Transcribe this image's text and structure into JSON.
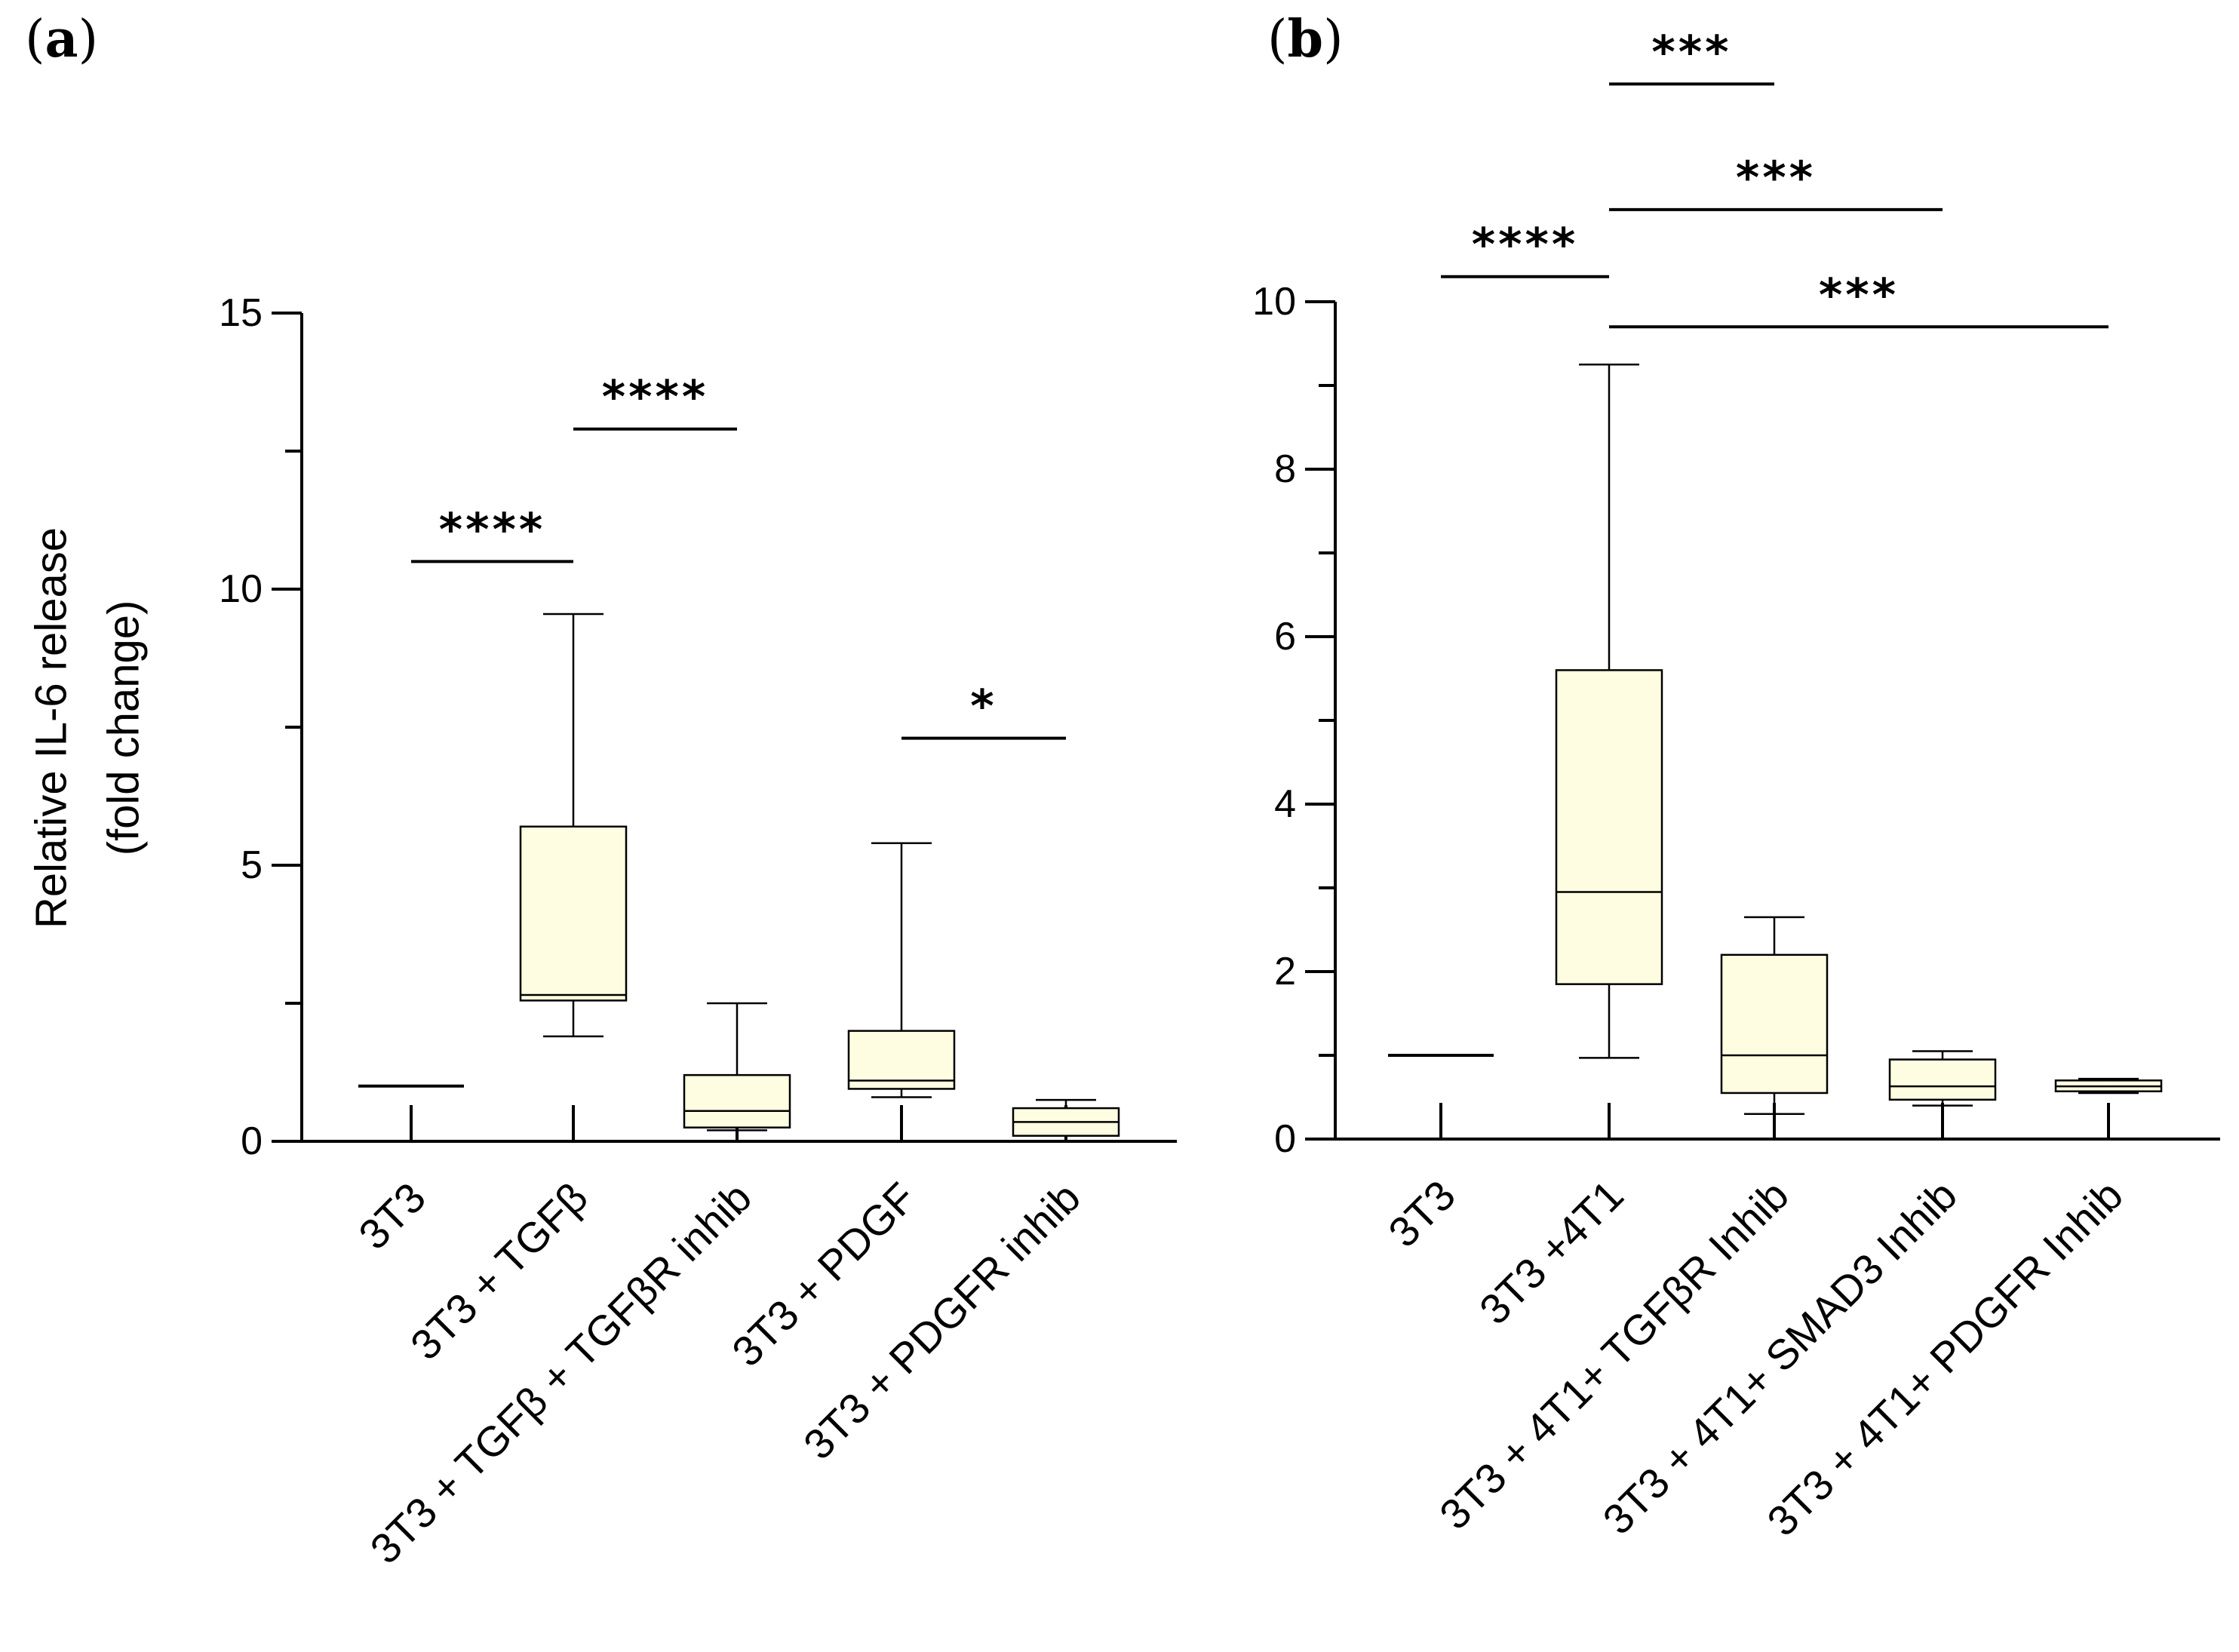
{
  "chart_data": [
    {
      "type": "box",
      "panel_label": "a",
      "title": "",
      "xlabel": "",
      "ylabel_lines": [
        "Relative IL-6 release",
        "(fold change)"
      ],
      "ylim": [
        0,
        15
      ],
      "major_ticks": [
        0,
        5,
        10,
        15
      ],
      "minor_step": 2.5,
      "categories": [
        "3T3",
        "3T3 + TGFβ",
        "3T3 + TGFβ + TGFβR inhib",
        "3T3 + PDGF",
        "3T3 + PDGFR inhib"
      ],
      "boxes": [
        {
          "category": "3T3",
          "min": 1,
          "q1": 1,
          "median": 1,
          "q3": 1,
          "max": 1
        },
        {
          "category": "3T3 + TGFβ",
          "min": 1.9,
          "q1": 2.55,
          "median": 2.65,
          "q3": 5.7,
          "max": 9.55
        },
        {
          "category": "3T3 + TGFβ + TGFβR inhib",
          "min": 0.2,
          "q1": 0.25,
          "median": 0.55,
          "q3": 1.2,
          "max": 2.5
        },
        {
          "category": "3T3 + PDGF",
          "min": 0.8,
          "q1": 0.95,
          "median": 1.1,
          "q3": 2.0,
          "max": 5.4
        },
        {
          "category": "3T3 + PDGFR inhib",
          "min": 0.0,
          "q1": 0.1,
          "median": 0.35,
          "q3": 0.6,
          "max": 0.75
        }
      ],
      "significance": [
        {
          "from": 0,
          "to": 1,
          "y": 10.5,
          "label": "****"
        },
        {
          "from": 1,
          "to": 2,
          "y": 12.9,
          "label": "****"
        },
        {
          "from": 3,
          "to": 4,
          "y": 7.3,
          "label": "*"
        }
      ]
    },
    {
      "type": "box",
      "panel_label": "b",
      "title": "",
      "xlabel": "",
      "ylabel_lines": [],
      "ylim": [
        0,
        10
      ],
      "major_ticks": [
        0,
        2,
        4,
        6,
        8,
        10
      ],
      "minor_step": 1,
      "categories": [
        "3T3",
        "3T3 +4T1",
        "3T3 + 4T1+ TGFβR Inhib",
        "3T3 + 4T1+ SMAD3 Inhib",
        "3T3 + 4T1+ PDGFR Inhib"
      ],
      "boxes": [
        {
          "category": "3T3",
          "min": 1,
          "q1": 1,
          "median": 1,
          "q3": 1,
          "max": 1
        },
        {
          "category": "3T3 +4T1",
          "min": 0.97,
          "q1": 1.85,
          "median": 2.95,
          "q3": 5.6,
          "max": 9.25
        },
        {
          "category": "3T3 + 4T1+ TGFβR Inhib",
          "min": 0.3,
          "q1": 0.55,
          "median": 1.0,
          "q3": 2.2,
          "max": 2.65
        },
        {
          "category": "3T3 + 4T1+ SMAD3 Inhib",
          "min": 0.4,
          "q1": 0.47,
          "median": 0.63,
          "q3": 0.95,
          "max": 1.05
        },
        {
          "category": "3T3 + 4T1+ PDGFR Inhib",
          "min": 0.55,
          "q1": 0.57,
          "median": 0.63,
          "q3": 0.7,
          "max": 0.72
        }
      ],
      "significance": [
        {
          "from": 0,
          "to": 1,
          "y": 10.3,
          "label": "****"
        },
        {
          "from": 1,
          "to": 2,
          "y": 12.6,
          "label": "***"
        },
        {
          "from": 1,
          "to": 3,
          "y": 11.1,
          "label": "***"
        },
        {
          "from": 1,
          "to": 4,
          "y": 9.7,
          "label": "***"
        }
      ]
    }
  ]
}
